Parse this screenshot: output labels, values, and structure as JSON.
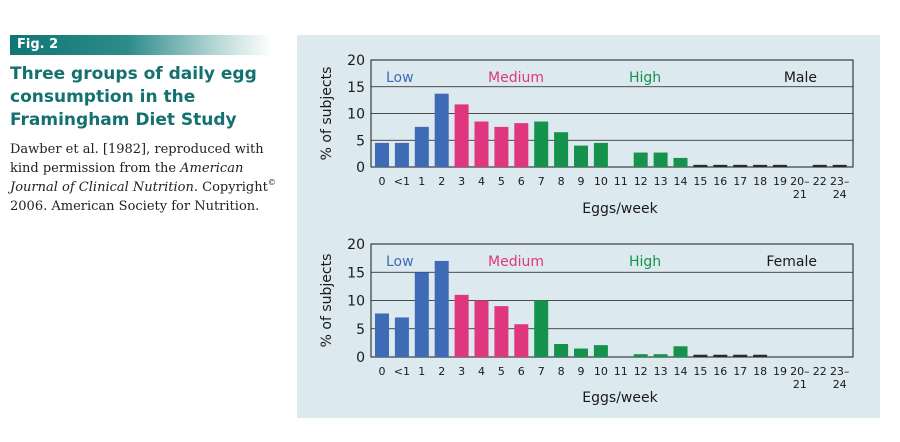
{
  "figure": {
    "tag": "Fig. 2",
    "title": "Three groups of daily egg consumption in the Framingham Diet Study",
    "caption": {
      "part1": "Dawber et al. [1982], reproduced with kind permission from the ",
      "journal": "American Journal of Clinical Nutrition",
      "part2": ". Copyright",
      "copyright_mark": "©",
      "part3": " 2006. American Society for Nutrition."
    }
  },
  "colors": {
    "low": "#3f6ab5",
    "medium": "#e0367f",
    "high": "#15934d",
    "other": "#2a2a2a",
    "panel_bg": "#dce9ee"
  },
  "chart_data": [
    {
      "type": "bar",
      "panel": "Male",
      "xlabel": "Eggs/week",
      "ylabel": "% of subjects",
      "ylim": [
        0,
        20
      ],
      "yticks": [
        0,
        5,
        10,
        15,
        20
      ],
      "grid": true,
      "categories": [
        "0",
        "<1",
        "1",
        "2",
        "3",
        "4",
        "5",
        "6",
        "7",
        "8",
        "9",
        "10",
        "11",
        "12",
        "13",
        "14",
        "15",
        "16",
        "17",
        "18",
        "19",
        "20–21",
        "22",
        "23–24"
      ],
      "values": [
        4.5,
        4.5,
        7.5,
        13.7,
        11.7,
        8.5,
        7.5,
        8.2,
        8.5,
        6.5,
        4.0,
        4.5,
        0,
        2.7,
        2.7,
        1.7,
        0.4,
        0.4,
        0.4,
        0.4,
        0.4,
        0,
        0.4,
        0.4
      ],
      "groups": [
        "low",
        "low",
        "low",
        "low",
        "medium",
        "medium",
        "medium",
        "medium",
        "high",
        "high",
        "high",
        "high",
        "high",
        "high",
        "high",
        "high",
        "other",
        "other",
        "other",
        "other",
        "other",
        "other",
        "other",
        "other"
      ],
      "group_labels": {
        "low": "Low",
        "medium": "Medium",
        "high": "High",
        "series": "Male"
      }
    },
    {
      "type": "bar",
      "panel": "Female",
      "xlabel": "Eggs/week",
      "ylabel": "% of subjects",
      "ylim": [
        0,
        20
      ],
      "yticks": [
        0,
        5,
        10,
        15,
        20
      ],
      "grid": true,
      "categories": [
        "0",
        "<1",
        "1",
        "2",
        "3",
        "4",
        "5",
        "6",
        "7",
        "8",
        "9",
        "10",
        "11",
        "12",
        "13",
        "14",
        "15",
        "16",
        "17",
        "18",
        "19",
        "20–21",
        "22",
        "23–24"
      ],
      "values": [
        7.7,
        7.0,
        15.0,
        17.0,
        11.0,
        10.0,
        9.0,
        5.8,
        10.0,
        2.3,
        1.5,
        2.1,
        0,
        0.5,
        0.5,
        1.9,
        0.4,
        0.4,
        0.4,
        0.4,
        0,
        0,
        0,
        0
      ],
      "groups": [
        "low",
        "low",
        "low",
        "low",
        "medium",
        "medium",
        "medium",
        "medium",
        "high",
        "high",
        "high",
        "high",
        "high",
        "high",
        "high",
        "high",
        "other",
        "other",
        "other",
        "other",
        "other",
        "other",
        "other",
        "other"
      ],
      "group_labels": {
        "low": "Low",
        "medium": "Medium",
        "high": "High",
        "series": "Female"
      }
    }
  ]
}
